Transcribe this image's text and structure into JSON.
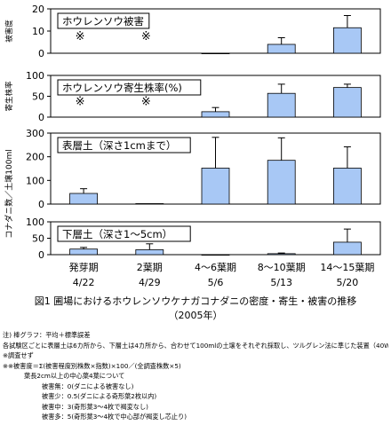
{
  "chart_data": {
    "type": "bar",
    "title": "図1  圃場におけるホウレンソウケナガコナダニの密度・寄生・被害の推移",
    "subtitle": "（2005年）",
    "categories": [
      {
        "stage": "発芽期",
        "date": "4/22"
      },
      {
        "stage": "2葉期",
        "date": "4/29"
      },
      {
        "stage": "4～6葉期",
        "date": "5/6"
      },
      {
        "stage": "8～10葉期",
        "date": "5/13"
      },
      {
        "stage": "14～15葉期",
        "date": "5/20"
      }
    ],
    "shared_ylabel": "コナダニ数／土壌100ml",
    "bar_color": "#a8c8f5",
    "panels": [
      {
        "id": "damage",
        "title": "ホウレンソウ被害",
        "ylabel": "被害度",
        "ylim": [
          0,
          20
        ],
        "yticks": [
          "0",
          "10",
          "20"
        ],
        "values": [
          null,
          null,
          0,
          4,
          11.5
        ],
        "errors": [
          null,
          null,
          0,
          3,
          5.5
        ],
        "marks": [
          "※",
          "※",
          null,
          null,
          null
        ]
      },
      {
        "id": "parasitism",
        "title": "ホウレンソウ寄生株率(%)",
        "ylabel": "寄生株率",
        "ylim": [
          0,
          100
        ],
        "yticks": [
          "0",
          "50",
          "100"
        ],
        "values": [
          null,
          null,
          13,
          57,
          71
        ],
        "errors": [
          null,
          null,
          10,
          22,
          8
        ],
        "marks": [
          "※",
          "※",
          null,
          null,
          null
        ]
      },
      {
        "id": "topsoil",
        "title": "表層土（深さ1cmまで）",
        "ylabel": "",
        "ylim": [
          0,
          300
        ],
        "yticks": [
          "0",
          "100",
          "200",
          "300"
        ],
        "values": [
          45,
          2,
          152,
          185,
          152
        ],
        "errors": [
          20,
          0,
          130,
          95,
          90
        ],
        "marks": [
          null,
          null,
          null,
          null,
          null
        ]
      },
      {
        "id": "subsoil",
        "title": "下層土（深さ1～5cm）",
        "ylabel": "",
        "ylim": [
          0,
          100
        ],
        "yticks": [
          "0",
          "50",
          "100"
        ],
        "values": [
          17,
          15,
          0,
          3,
          38
        ],
        "errors": [
          5,
          18,
          0,
          2,
          40
        ],
        "marks": [
          null,
          null,
          null,
          null,
          null
        ]
      }
    ]
  },
  "notes": [
    {
      "text": "注) 棒グラフ：平均＋標準誤差",
      "indent": 0
    },
    {
      "text": "各試験区ごとに表層土は6カ所から、下層土は4カ所から、合わせて100mlの土壌をそれぞれ採取し、ツルグレン法に準じた装置（40Wの白熱電球使用、電球と試料との距離8～9cm）にてコナダニを抽出した",
      "indent": 0
    },
    {
      "text": "※調査せず",
      "indent": 0
    },
    {
      "text": "※※被害度＝Σ(被害程度別株数×指数)×100／(全調査株数×5)",
      "indent": 0
    },
    {
      "text": "葉長2cm以上の中心葉4葉について",
      "indent": 1
    },
    {
      "text": "被害無：0(ダニによる被害なし)",
      "indent": 2
    },
    {
      "text": "被害少：0.5(ダニによる奇形葉2枚以内)",
      "indent": 2
    },
    {
      "text": "被害中：3(奇形葉3～4枚で褐変なし)",
      "indent": 2
    },
    {
      "text": "被害多：5(奇形葉3～4枚で中心部が褐変し芯止り)",
      "indent": 2
    }
  ]
}
